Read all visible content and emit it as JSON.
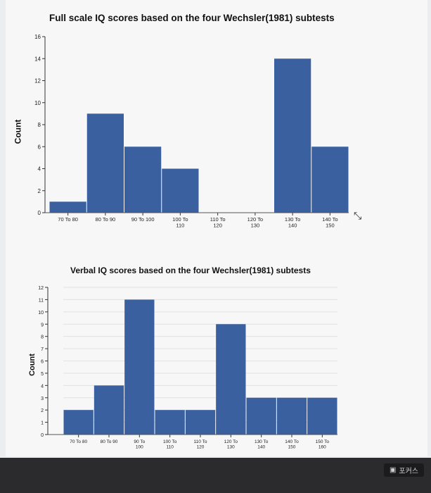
{
  "chart_data": [
    {
      "type": "bar",
      "title": "Full scale IQ scores based on the four Wechsler(1981) subtests",
      "ylabel": "Count",
      "xlabel": "",
      "categories": [
        "70 To 80",
        "80 To 90",
        "90 To 100",
        "100 To 110",
        "110 To 120",
        "120 To 130",
        "130 To 140",
        "140 To 150"
      ],
      "values": [
        1,
        9,
        6,
        4,
        0,
        0,
        14,
        6
      ],
      "ylim": [
        0,
        16
      ],
      "yticks": [
        0,
        2,
        4,
        6,
        8,
        10,
        12,
        14,
        16
      ],
      "color": "#3a60a0",
      "grid": false
    },
    {
      "type": "bar",
      "title": "Verbal IQ scores based on the four Wechsler(1981) subtests",
      "ylabel": "Count",
      "xlabel": "",
      "categories": [
        "70 To 80",
        "80 To 90",
        "90 To 100",
        "100 To 110",
        "110 To 120",
        "120 To 130",
        "130 To 140",
        "140 To 150",
        "150 To 160"
      ],
      "values": [
        2,
        4,
        11,
        2,
        2,
        9,
        3,
        3,
        3
      ],
      "ylim": [
        0,
        12
      ],
      "yticks": [
        0,
        1,
        2,
        3,
        4,
        5,
        6,
        7,
        8,
        9,
        10,
        11,
        12
      ],
      "color": "#3a60a0",
      "grid": true
    }
  ],
  "taskbar": {
    "label": "포커스",
    "icon": "window-icon"
  }
}
